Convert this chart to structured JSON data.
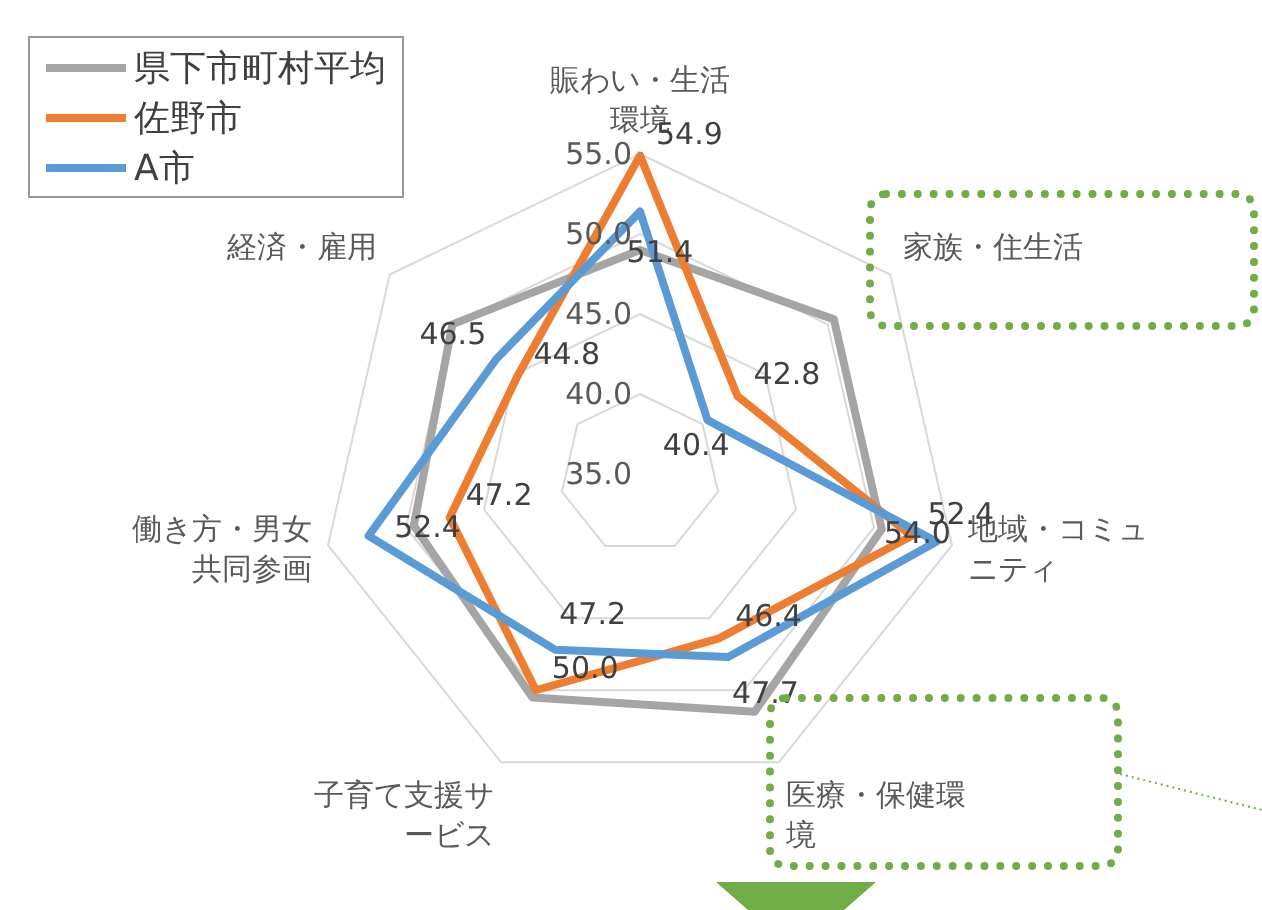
{
  "chart_data": {
    "type": "radar",
    "categories": [
      "賑わい・生活環境",
      "家族・住生活",
      "地域・コミュニティ",
      "医療・保健環境",
      "子育て支援サービス",
      "働き方・男女共同参画",
      "経済・雇用"
    ],
    "series": [
      {
        "name": "県下市町村平均",
        "color": "#a5a5a5",
        "values": [
          49,
          50.5,
          50.5,
          51.5,
          50.5,
          49.5,
          50
        ]
      },
      {
        "name": "佐野市",
        "color": "#ed7d31",
        "values": [
          54.9,
          42.8,
          52.4,
          46.4,
          50.0,
          47.2,
          44.8
        ],
        "value_labels": [
          "54.9",
          "42.8",
          "52.4",
          "46.4",
          "50.0",
          "47.2",
          "44.8"
        ]
      },
      {
        "name": "A市",
        "color": "#5b9bd5",
        "values": [
          51.4,
          40.4,
          54.0,
          47.7,
          47.2,
          52.4,
          46.5
        ],
        "value_labels": [
          "51.4",
          "40.4",
          "54.0",
          "47.7",
          "47.2",
          "52.4",
          "46.5"
        ]
      }
    ],
    "ylim": [
      35,
      55
    ],
    "yticks": [
      {
        "value": 35,
        "label": "35.0"
      },
      {
        "value": 40,
        "label": "40.0"
      },
      {
        "value": 45,
        "label": "45.0"
      },
      {
        "value": 50,
        "label": "50.0"
      },
      {
        "value": 55,
        "label": "55.0"
      }
    ],
    "grid": true,
    "legend": "top left",
    "marker": "none"
  }
}
